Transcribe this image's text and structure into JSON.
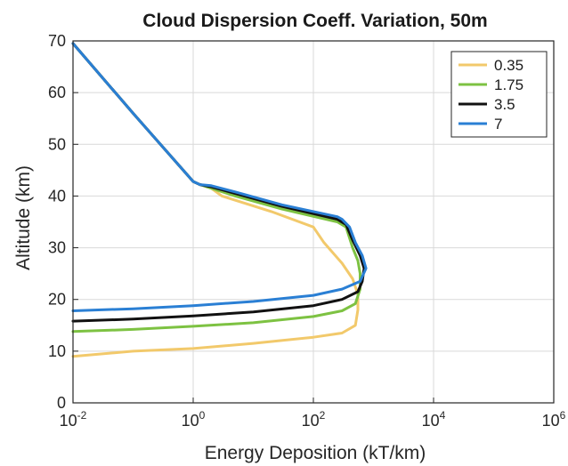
{
  "chart_data": {
    "type": "line",
    "title": "Cloud Dispersion Coeff. Variation, 50m",
    "xlabel": "Energy Deposition (kT/km)",
    "ylabel": "Altitude (km)",
    "x_scale": "log",
    "xlim": [
      0.01,
      1000000
    ],
    "ylim": [
      0,
      70
    ],
    "x_ticks": [
      {
        "base": "10",
        "exp": "-2"
      },
      {
        "base": "10",
        "exp": "0"
      },
      {
        "base": "10",
        "exp": "2"
      },
      {
        "base": "10",
        "exp": "4"
      },
      {
        "base": "10",
        "exp": "6"
      }
    ],
    "y_ticks": [
      "0",
      "10",
      "20",
      "30",
      "40",
      "50",
      "60",
      "70"
    ],
    "grid": true,
    "legend_position": "top-right",
    "series": [
      {
        "name": "0.35",
        "color": "#f2c96b",
        "points": [
          [
            0.01,
            9
          ],
          [
            0.1,
            10
          ],
          [
            1,
            10.5
          ],
          [
            10,
            11.5
          ],
          [
            100,
            12.7
          ],
          [
            300,
            13.5
          ],
          [
            500,
            15
          ],
          [
            550,
            18
          ],
          [
            550,
            21
          ],
          [
            450,
            24
          ],
          [
            300,
            27
          ],
          [
            150,
            31
          ],
          [
            100,
            34
          ],
          [
            20,
            37
          ],
          [
            3,
            40
          ],
          [
            2,
            41.5
          ],
          [
            1.3,
            42.2
          ],
          [
            1,
            42.8
          ],
          [
            0.1,
            56
          ],
          [
            0.01,
            69.5
          ]
        ]
      },
      {
        "name": "1.75",
        "color": "#7dc242",
        "points": [
          [
            0.01,
            13.8
          ],
          [
            0.1,
            14.2
          ],
          [
            1,
            14.8
          ],
          [
            10,
            15.5
          ],
          [
            100,
            16.7
          ],
          [
            300,
            17.8
          ],
          [
            500,
            19.2
          ],
          [
            600,
            22
          ],
          [
            600,
            25
          ],
          [
            550,
            27.5
          ],
          [
            450,
            30
          ],
          [
            350,
            34
          ],
          [
            250,
            35
          ],
          [
            30,
            37.5
          ],
          [
            5,
            40
          ],
          [
            2,
            41.5
          ],
          [
            1.3,
            42.2
          ],
          [
            1,
            42.8
          ],
          [
            0.1,
            56
          ],
          [
            0.01,
            69.5
          ]
        ]
      },
      {
        "name": "3.5",
        "color": "#111111",
        "points": [
          [
            0.01,
            15.8
          ],
          [
            0.1,
            16.2
          ],
          [
            1,
            16.8
          ],
          [
            10,
            17.6
          ],
          [
            100,
            18.8
          ],
          [
            300,
            20
          ],
          [
            550,
            21.5
          ],
          [
            650,
            23.5
          ],
          [
            700,
            26
          ],
          [
            600,
            28.5
          ],
          [
            450,
            31.5
          ],
          [
            350,
            34.5
          ],
          [
            250,
            35.5
          ],
          [
            30,
            38
          ],
          [
            5,
            40.5
          ],
          [
            2,
            41.8
          ],
          [
            1.3,
            42.2
          ],
          [
            1,
            42.8
          ],
          [
            0.1,
            56
          ],
          [
            0.01,
            69.5
          ]
        ]
      },
      {
        "name": "7",
        "color": "#2a7fd4",
        "points": [
          [
            0.01,
            17.8
          ],
          [
            0.1,
            18.2
          ],
          [
            1,
            18.8
          ],
          [
            10,
            19.6
          ],
          [
            100,
            20.8
          ],
          [
            300,
            22
          ],
          [
            600,
            23.5
          ],
          [
            750,
            26
          ],
          [
            650,
            28.5
          ],
          [
            500,
            31
          ],
          [
            400,
            34
          ],
          [
            300,
            35.5
          ],
          [
            250,
            36
          ],
          [
            30,
            38.3
          ],
          [
            5,
            40.8
          ],
          [
            2,
            42
          ],
          [
            1.3,
            42.2
          ],
          [
            1,
            42.8
          ],
          [
            0.1,
            56
          ],
          [
            0.01,
            69.5
          ]
        ]
      }
    ]
  }
}
